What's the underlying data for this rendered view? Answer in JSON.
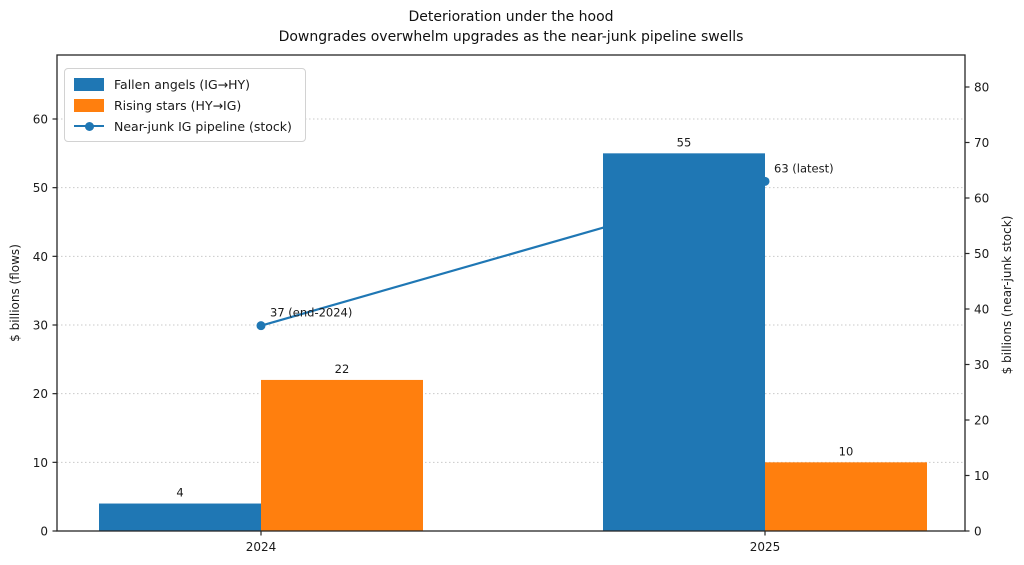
{
  "title": {
    "line1": "Deterioration under the hood",
    "line2": "Downgrades overwhelm upgrades as the near-junk pipeline swells"
  },
  "chart_data": {
    "type": "bar+line combo (dual axis)",
    "categories": [
      "2024",
      "2025"
    ],
    "series": [
      {
        "name": "Fallen angels (IG→HY)",
        "type": "bar",
        "axis": "left",
        "color": "#1f77b4",
        "values": [
          4,
          55
        ]
      },
      {
        "name": "Rising stars (HY→IG)",
        "type": "bar",
        "axis": "left",
        "color": "#ff7f0e",
        "values": [
          22,
          10
        ]
      },
      {
        "name": "Near-junk IG pipeline (stock)",
        "type": "line",
        "axis": "right",
        "color": "#1f77b4",
        "values": [
          37,
          63
        ],
        "point_labels": [
          "37 (end-2024)",
          "63 (latest)"
        ]
      }
    ],
    "ylabel_left": "$ billions (flows)",
    "ylabel_right": "$ billions (near-junk stock)",
    "yticks_left": [
      0,
      10,
      20,
      30,
      40,
      50,
      60
    ],
    "yticks_right": [
      0,
      10,
      20,
      30,
      40,
      50,
      60,
      70,
      80
    ],
    "ylim_left": [
      0,
      69
    ],
    "ylim_right": [
      0,
      86
    ],
    "grid": "horizontal dotted at left-axis ticks",
    "legend_position": "upper left",
    "grid_color": "#c9c9c9",
    "spine_color": "#262626",
    "text_color": "#1a1a1a"
  }
}
